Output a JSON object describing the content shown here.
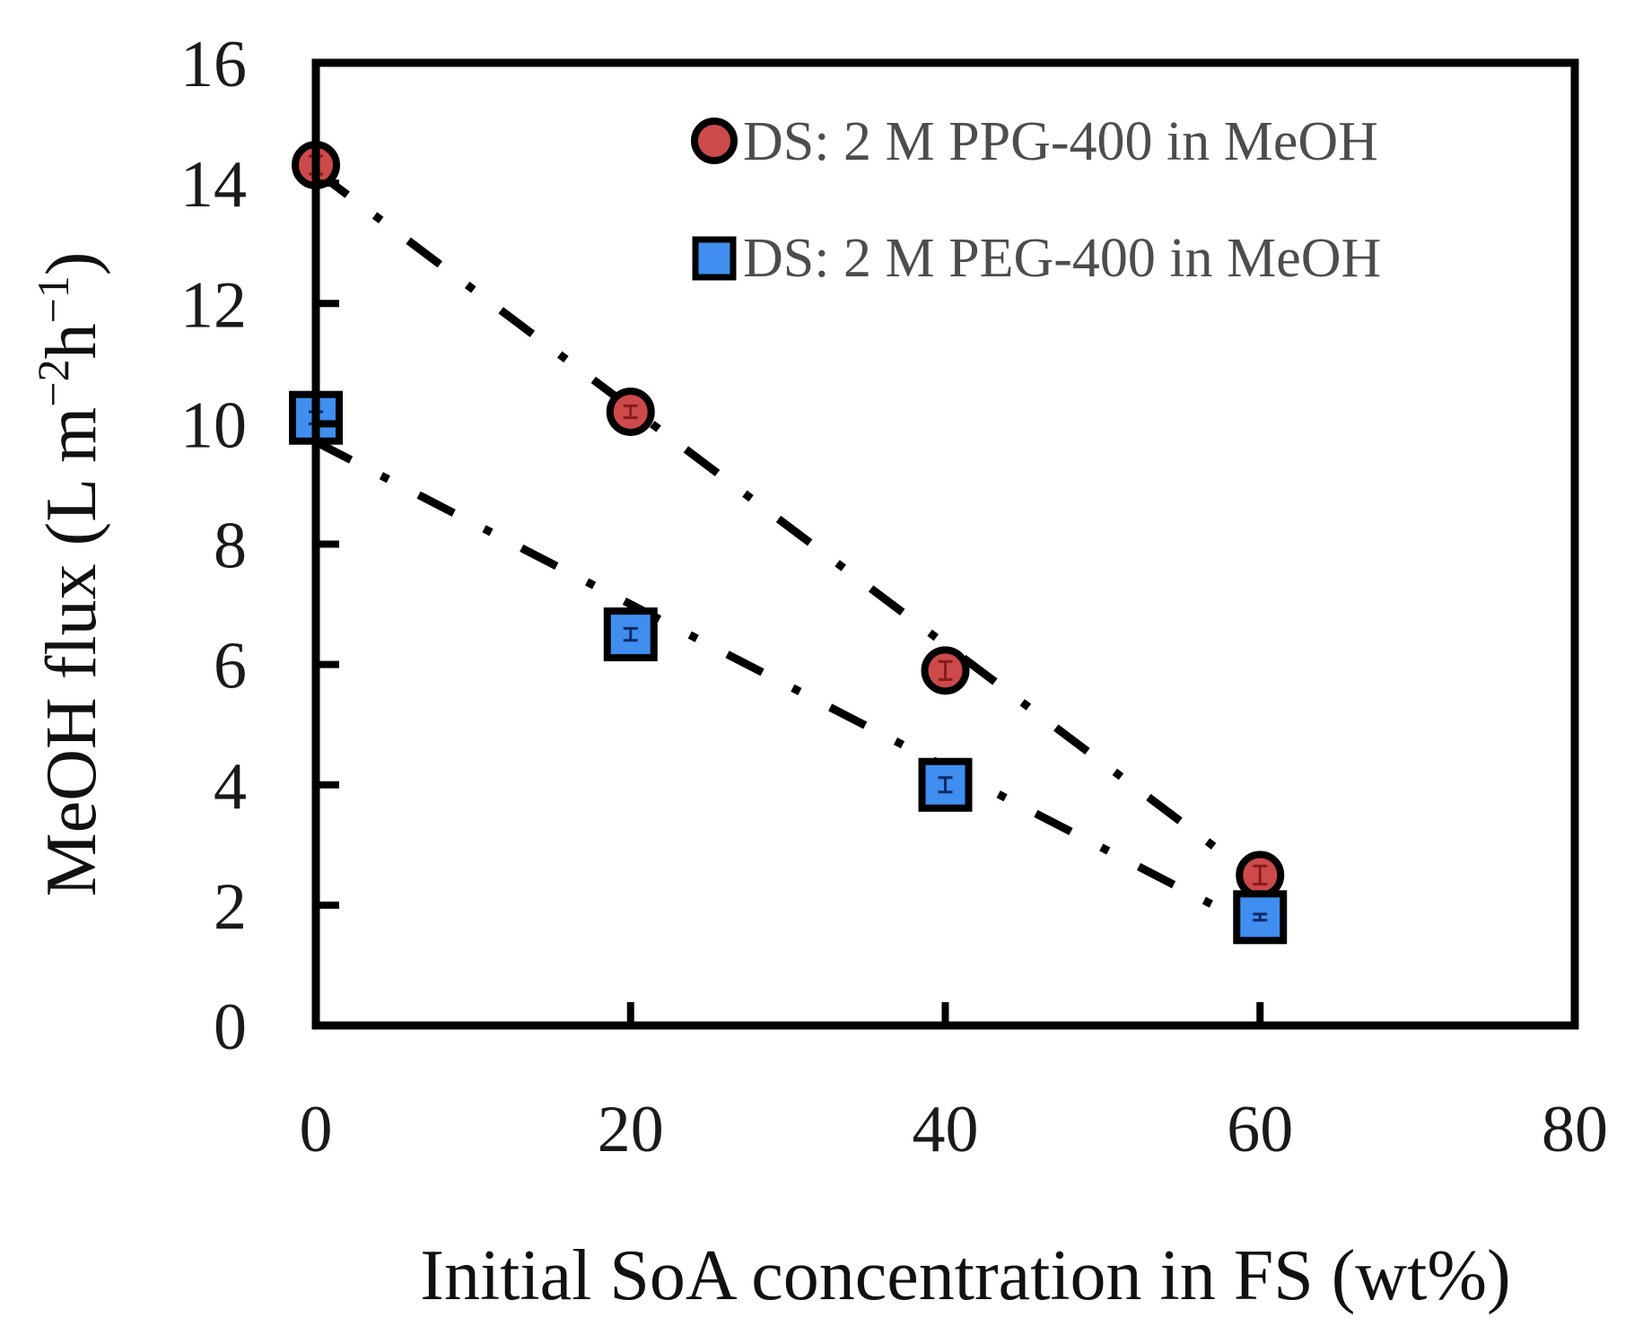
{
  "chart_data": {
    "type": "scatter",
    "title": "",
    "xlabel": "Initial SoA concentration in FS (wt%)",
    "ylabel": "MeOH flux (L m",
    "ylabel_sup1": "−2",
    "ylabel_mid": "h",
    "ylabel_sup2": "−1",
    "ylabel_end": ")",
    "xlim": [
      0,
      80
    ],
    "ylim": [
      0,
      16
    ],
    "xticks": [
      0,
      20,
      40,
      60,
      80
    ],
    "yticks": [
      0,
      2,
      4,
      6,
      8,
      10,
      12,
      14,
      16
    ],
    "legend_position": "top-right",
    "series": [
      {
        "name": "DS: 2 M PPG-400 in MeOH",
        "marker": "circle",
        "color": "#cd4a4a",
        "x": [
          0,
          20,
          40,
          60
        ],
        "y": [
          14.3,
          10.2,
          5.9,
          2.5
        ],
        "err": [
          0.15,
          0.1,
          0.15,
          0.15
        ],
        "trendline": {
          "style": "dash-dot",
          "x": [
            0,
            60
          ],
          "y": [
            14.2,
            2.4
          ]
        }
      },
      {
        "name": "DS: 2 M PEG-400 in MeOH",
        "marker": "square",
        "color": "#3f8ef0",
        "x": [
          0,
          20,
          40,
          60
        ],
        "y": [
          10.1,
          6.5,
          4.0,
          1.8
        ],
        "err": [
          0.1,
          0.1,
          0.12,
          0.05
        ],
        "trendline": {
          "style": "dash-dot",
          "x": [
            0,
            60
          ],
          "y": [
            9.7,
            1.6
          ]
        }
      }
    ]
  }
}
